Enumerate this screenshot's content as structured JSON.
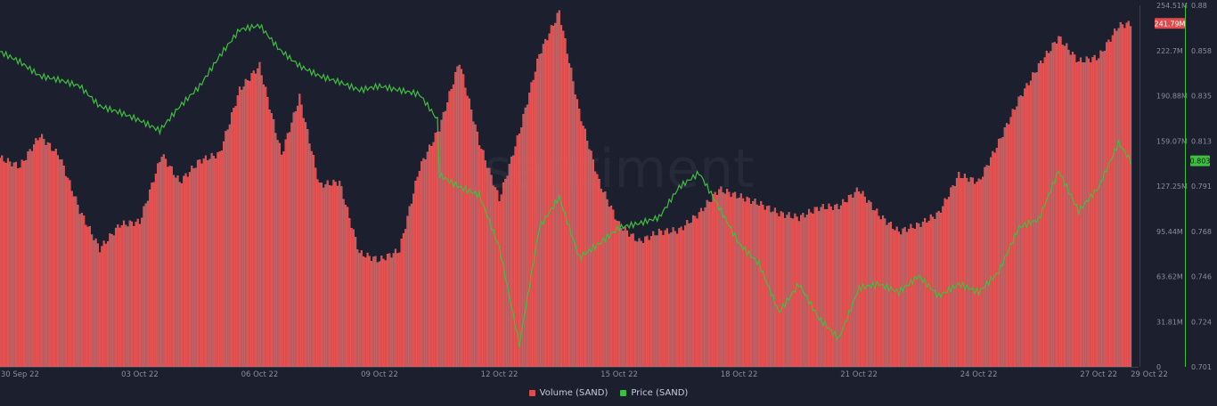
{
  "colors": {
    "background": "#1b1f2e",
    "volume": "#e04b4b",
    "volume_stripe": "#ffb3b3",
    "price": "#3fbf3f",
    "axis_text": "#8a8f9c",
    "axis_line": "#3a3f50"
  },
  "watermark": "santiment",
  "badges": {
    "volume_last": "241.79M",
    "price_last": "0.803"
  },
  "chart_data": {
    "type": "bar+line",
    "x_ticks": [
      "30 Sep 22",
      "03 Oct 22",
      "06 Oct 22",
      "09 Oct 22",
      "12 Oct 22",
      "15 Oct 22",
      "18 Oct 22",
      "21 Oct 22",
      "24 Oct 22",
      "27 Oct 22",
      "29 Oct 22"
    ],
    "volume_axis": {
      "ticks": [
        "254.51M",
        "222.7M",
        "190.88M",
        "159.07M",
        "127.25M",
        "95.44M",
        "63.62M",
        "31.81M",
        "0"
      ],
      "range": [
        0,
        254.51
      ]
    },
    "price_axis": {
      "ticks": [
        "0.88",
        "0.858",
        "0.835",
        "0.813",
        "0.791",
        "0.768",
        "0.746",
        "0.724",
        "0.701"
      ],
      "range": [
        0.701,
        0.88
      ]
    },
    "x_range": [
      0,
      28.5
    ],
    "series": [
      {
        "name": "Volume (SAND)",
        "kind": "bar",
        "unit": "M",
        "points": [
          [
            0,
            147
          ],
          [
            0.5,
            141
          ],
          [
            1,
            163
          ],
          [
            1.5,
            148
          ],
          [
            2,
            110
          ],
          [
            2.5,
            83
          ],
          [
            3,
            100
          ],
          [
            3.5,
            102
          ],
          [
            4,
            145
          ],
          [
            4,
            152
          ],
          [
            4.5,
            130
          ],
          [
            5,
            145
          ],
          [
            5.5,
            150
          ],
          [
            6,
            195
          ],
          [
            6.5,
            212
          ],
          [
            7,
            155
          ],
          [
            7,
            145
          ],
          [
            7.5,
            190
          ],
          [
            8,
            128
          ],
          [
            8.5,
            130
          ],
          [
            9,
            80
          ],
          [
            9.5,
            75
          ],
          [
            10,
            82
          ],
          [
            10.5,
            140
          ],
          [
            11,
            168
          ],
          [
            11.5,
            215
          ],
          [
            12,
            158
          ],
          [
            12.5,
            118
          ],
          [
            13,
            165
          ],
          [
            13.5,
            220
          ],
          [
            14,
            250
          ],
          [
            14.5,
            180
          ],
          [
            15,
            130
          ],
          [
            15.5,
            100
          ],
          [
            16,
            88
          ],
          [
            16.5,
            95
          ],
          [
            17,
            96
          ],
          [
            17.5,
            108
          ],
          [
            18,
            125
          ],
          [
            18.5,
            120
          ],
          [
            19,
            115
          ],
          [
            19.5,
            108
          ],
          [
            20,
            105
          ],
          [
            20.5,
            112
          ],
          [
            21,
            113
          ],
          [
            21.5,
            125
          ],
          [
            22,
            107
          ],
          [
            22.5,
            95
          ],
          [
            23,
            100
          ],
          [
            23.5,
            108
          ],
          [
            24,
            135
          ],
          [
            24.5,
            130
          ],
          [
            25,
            158
          ],
          [
            25.5,
            188
          ],
          [
            26,
            212
          ],
          [
            26.5,
            232
          ],
          [
            27,
            215
          ],
          [
            27.5,
            218
          ],
          [
            28,
            240
          ],
          [
            28.3,
            241.79
          ]
        ]
      },
      {
        "name": "Price (SAND)",
        "kind": "line",
        "points": [
          [
            0,
            0.857
          ],
          [
            0.5,
            0.852
          ],
          [
            1,
            0.845
          ],
          [
            1.5,
            0.843
          ],
          [
            2,
            0.84
          ],
          [
            2.5,
            0.83
          ],
          [
            3,
            0.827
          ],
          [
            3.5,
            0.823
          ],
          [
            4,
            0.818
          ],
          [
            4.5,
            0.83
          ],
          [
            5,
            0.84
          ],
          [
            5.5,
            0.855
          ],
          [
            6,
            0.868
          ],
          [
            6.5,
            0.87
          ],
          [
            7,
            0.858
          ],
          [
            7.5,
            0.85
          ],
          [
            8,
            0.845
          ],
          [
            8.5,
            0.842
          ],
          [
            9,
            0.838
          ],
          [
            9.5,
            0.84
          ],
          [
            10,
            0.838
          ],
          [
            10.5,
            0.836
          ],
          [
            11,
            0.822
          ],
          [
            11,
            0.796
          ],
          [
            11.5,
            0.79
          ],
          [
            12,
            0.786
          ],
          [
            12.5,
            0.76
          ],
          [
            13,
            0.712
          ],
          [
            13.5,
            0.77
          ],
          [
            14,
            0.785
          ],
          [
            14.5,
            0.755
          ],
          [
            15,
            0.762
          ],
          [
            15.5,
            0.77
          ],
          [
            16,
            0.772
          ],
          [
            16.5,
            0.775
          ],
          [
            17,
            0.79
          ],
          [
            17.5,
            0.797
          ],
          [
            18,
            0.78
          ],
          [
            18.5,
            0.762
          ],
          [
            19,
            0.752
          ],
          [
            19.5,
            0.728
          ],
          [
            20,
            0.742
          ],
          [
            20.5,
            0.725
          ],
          [
            21,
            0.715
          ],
          [
            21.5,
            0.74
          ],
          [
            22,
            0.742
          ],
          [
            22.5,
            0.738
          ],
          [
            23,
            0.746
          ],
          [
            23.5,
            0.736
          ],
          [
            24,
            0.742
          ],
          [
            24.5,
            0.738
          ],
          [
            25,
            0.748
          ],
          [
            25.5,
            0.77
          ],
          [
            26,
            0.774
          ],
          [
            26.5,
            0.798
          ],
          [
            27,
            0.778
          ],
          [
            27.5,
            0.79
          ],
          [
            28,
            0.812
          ],
          [
            28.3,
            0.803
          ]
        ]
      }
    ],
    "legend": [
      "Volume (SAND)",
      "Price (SAND)"
    ],
    "legend_position": "bottom-center",
    "grid": false
  }
}
